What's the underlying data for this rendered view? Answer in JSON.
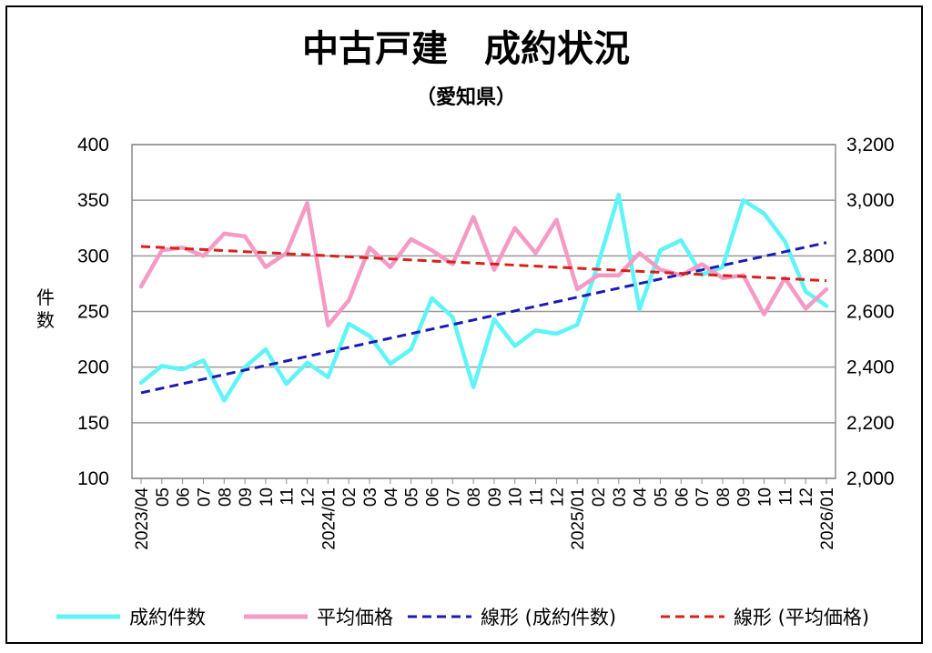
{
  "chart_data": {
    "type": "line",
    "title": "中古戸建　成約状況",
    "subtitle": "（愛知県）",
    "ylabel_left": "件数",
    "ylim_left": [
      100,
      400
    ],
    "yticks_left": [
      "100",
      "150",
      "200",
      "250",
      "300",
      "350",
      "400"
    ],
    "ylim_right": [
      2000,
      3200
    ],
    "yticks_right": [
      "2,000",
      "2,200",
      "2,400",
      "2,600",
      "2,800",
      "3,000",
      "3,200"
    ],
    "x": [
      "2023/04",
      "05",
      "06",
      "07",
      "08",
      "09",
      "10",
      "11",
      "12",
      "2024/01",
      "02",
      "03",
      "04",
      "05",
      "06",
      "07",
      "08",
      "09",
      "10",
      "11",
      "12",
      "2025/01",
      "02",
      "03",
      "04",
      "05",
      "06",
      "07",
      "08",
      "09",
      "10",
      "11",
      "12",
      "2026/01"
    ],
    "grid": true,
    "legend_position": "bottom",
    "series": [
      {
        "name": "成約件数",
        "axis": "left",
        "color": "#5ff4f7",
        "style": "solid",
        "values": [
          186,
          201,
          198,
          206,
          170,
          200,
          216,
          185,
          204,
          191,
          239,
          228,
          203,
          216,
          262,
          245,
          182,
          243,
          219,
          233,
          230,
          238,
          292,
          355,
          252,
          305,
          314,
          283,
          290,
          350,
          338,
          313,
          268,
          255
        ]
      },
      {
        "name": "平均価格",
        "axis": "right",
        "color": "#f49ac4",
        "style": "solid",
        "values": [
          2690,
          2820,
          2830,
          2800,
          2880,
          2870,
          2760,
          2810,
          2990,
          2550,
          2640,
          2830,
          2760,
          2860,
          2820,
          2770,
          2940,
          2750,
          2900,
          2810,
          2930,
          2680,
          2730,
          2730,
          2810,
          2750,
          2730,
          2770,
          2720,
          2730,
          2590,
          2720,
          2610,
          2680
        ]
      },
      {
        "name": "線形 (成約件数)",
        "axis": "left",
        "color": "#1a1ab4",
        "style": "dashed",
        "trend_of": "成約件数"
      },
      {
        "name": "線形 (平均価格)",
        "axis": "right",
        "color": "#d9201a",
        "style": "dashed",
        "trend_of": "平均価格"
      }
    ]
  }
}
